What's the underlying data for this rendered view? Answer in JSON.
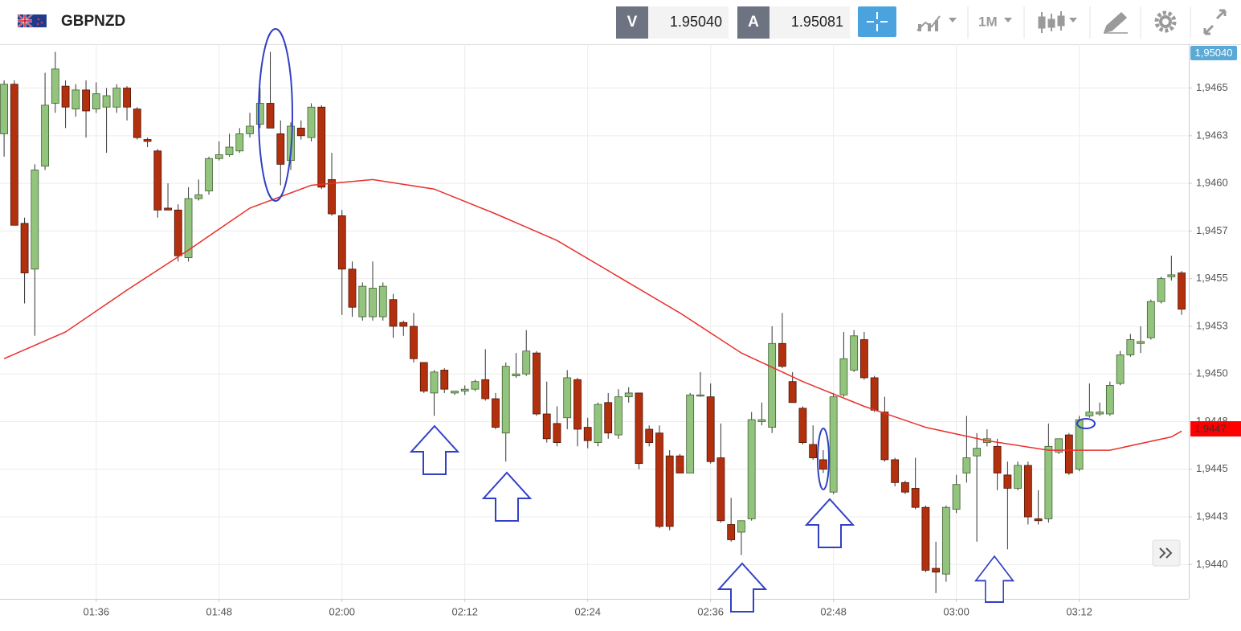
{
  "header": {
    "symbol": "GBPNZD",
    "sell_label": "V",
    "sell_price": "1.95040",
    "buy_label": "A",
    "buy_price": "1.95081",
    "timeframe": "1M"
  },
  "price_tags": {
    "ask": "1,95040",
    "last": "1,9447"
  },
  "chart_data": {
    "type": "candlestick",
    "x": [
      87,
      88,
      89,
      90,
      91,
      92,
      93,
      94,
      95,
      96,
      97,
      98,
      99,
      100,
      101,
      102,
      103,
      104,
      105,
      106,
      107,
      108,
      109,
      110,
      111,
      112,
      113,
      114,
      115,
      116,
      117,
      118,
      119,
      120,
      121,
      122,
      123,
      124,
      125,
      126,
      127,
      128,
      129,
      130,
      131,
      132,
      133,
      134,
      135,
      136,
      137,
      138,
      139,
      140,
      141,
      142,
      143,
      144,
      145,
      146,
      147,
      148,
      149,
      150,
      151,
      152,
      153,
      154,
      155,
      156,
      157,
      158,
      159,
      160,
      161,
      162,
      163,
      164,
      165,
      166,
      167,
      168,
      169,
      170,
      171,
      172,
      173,
      174,
      175,
      176,
      177,
      178,
      179,
      180,
      181,
      182,
      183,
      184,
      185,
      186,
      187,
      188,
      189,
      190,
      191,
      192,
      193,
      194,
      195,
      196,
      197,
      198,
      199,
      200,
      201,
      202
    ],
    "open": [
      1.94626,
      1.94652,
      1.94579,
      1.94555,
      1.94609,
      1.94642,
      1.94651,
      1.94639,
      1.94649,
      1.94639,
      1.9464,
      1.9464,
      1.9465,
      1.94639,
      1.94623,
      1.94617,
      1.94587,
      1.94586,
      1.94561,
      1.94592,
      1.94596,
      1.94613,
      1.94615,
      1.94617,
      1.94626,
      1.94631,
      1.94642,
      1.94626,
      1.94612,
      1.94629,
      1.94624,
      1.9464,
      1.94602,
      1.94583,
      1.94555,
      1.9453,
      1.9453,
      1.9453,
      1.94539,
      1.94527,
      1.94525,
      1.94506,
      1.9449,
      1.94502,
      1.9449,
      1.94491,
      1.94492,
      1.94497,
      1.94487,
      1.94469,
      1.94499,
      1.945,
      1.94511,
      1.94479,
      1.94474,
      1.94477,
      1.94497,
      1.94472,
      1.94464,
      1.94485,
      1.94468,
      1.94488,
      1.9449,
      1.94471,
      1.94469,
      1.94457,
      1.94457,
      1.94448,
      1.94489,
      1.94488,
      1.94456,
      1.94421,
      1.94417,
      1.94424,
      1.94475,
      1.94472,
      1.94516,
      1.94496,
      1.94482,
      1.94463,
      1.94455,
      1.94438,
      1.94489,
      1.94502,
      1.94518,
      1.94498,
      1.9448,
      1.94455,
      1.94443,
      1.9444,
      1.9443,
      1.94398,
      1.94395,
      1.94429,
      1.94448,
      1.94457,
      1.94464,
      1.94462,
      1.94447,
      1.9444,
      1.94452,
      1.94424,
      1.94424,
      1.94459,
      1.94468,
      1.9445,
      1.94478,
      1.94479,
      1.94479,
      1.94495,
      1.9451,
      1.94516,
      1.94519,
      1.94538,
      1.94551,
      1.94553
    ],
    "high": [
      1.94654,
      1.94654,
      1.94582,
      1.9461,
      1.94658,
      1.94669,
      1.94654,
      1.94652,
      1.94654,
      1.94653,
      1.9465,
      1.94652,
      1.94651,
      1.9464,
      1.94624,
      1.94618,
      1.946,
      1.94589,
      1.94598,
      1.94602,
      1.94614,
      1.94622,
      1.94626,
      1.94629,
      1.94637,
      1.9465,
      1.94669,
      1.94633,
      1.94632,
      1.94633,
      1.94642,
      1.94641,
      1.94616,
      1.94586,
      1.94559,
      1.94548,
      1.94559,
      1.94548,
      1.94542,
      1.94528,
      1.94532,
      1.94506,
      1.94502,
      1.94503,
      1.94491,
      1.94494,
      1.94497,
      1.94513,
      1.9449,
      1.94506,
      1.94511,
      1.94523,
      1.94512,
      1.94496,
      1.94483,
      1.94502,
      1.94498,
      1.94477,
      1.94485,
      1.9449,
      1.94492,
      1.94493,
      1.9449,
      1.94473,
      1.94473,
      1.9446,
      1.94458,
      1.9449,
      1.94501,
      1.94495,
      1.94474,
      1.94435,
      1.94423,
      1.9448,
      1.94485,
      1.94525,
      1.94532,
      1.94501,
      1.94483,
      1.94473,
      1.9446,
      1.9449,
      1.94522,
      1.94523,
      1.94522,
      1.94499,
      1.94488,
      1.94456,
      1.94444,
      1.94456,
      1.94431,
      1.94412,
      1.94431,
      1.94447,
      1.94478,
      1.94469,
      1.94471,
      1.94466,
      1.94454,
      1.94454,
      1.94454,
      1.94439,
      1.94474,
      1.94466,
      1.94469,
      1.94478,
      1.94495,
      1.94485,
      1.94496,
      1.94512,
      1.94521,
      1.94525,
      1.94539,
      1.94551,
      1.94562,
      1.94554
    ],
    "low": [
      1.94614,
      1.94578,
      1.94537,
      1.9452,
      1.94607,
      1.94637,
      1.94629,
      1.94635,
      1.94624,
      1.94637,
      1.94616,
      1.94637,
      1.94633,
      1.94623,
      1.94619,
      1.94582,
      1.94586,
      1.94559,
      1.94559,
      1.94591,
      1.94594,
      1.94612,
      1.94614,
      1.94616,
      1.94624,
      1.94629,
      1.94629,
      1.94599,
      1.94607,
      1.94623,
      1.94622,
      1.94597,
      1.94583,
      1.94531,
      1.9453,
      1.94528,
      1.94528,
      1.94528,
      1.94519,
      1.9452,
      1.94506,
      1.9449,
      1.94478,
      1.9449,
      1.94489,
      1.94489,
      1.94491,
      1.94486,
      1.94471,
      1.94454,
      1.94498,
      1.94499,
      1.94478,
      1.94464,
      1.94462,
      1.94471,
      1.94462,
      1.94461,
      1.94462,
      1.94466,
      1.94466,
      1.94485,
      1.9445,
      1.94462,
      1.94419,
      1.94418,
      1.94448,
      1.94448,
      1.94488,
      1.94453,
      1.94422,
      1.94412,
      1.94405,
      1.94423,
      1.94473,
      1.94469,
      1.94503,
      1.94485,
      1.94463,
      1.94455,
      1.94448,
      1.94437,
      1.94488,
      1.94501,
      1.94497,
      1.9448,
      1.94454,
      1.94441,
      1.94437,
      1.94429,
      1.94396,
      1.94385,
      1.94391,
      1.94427,
      1.94443,
      1.94412,
      1.94462,
      1.94439,
      1.94408,
      1.94439,
      1.94421,
      1.94421,
      1.94422,
      1.94458,
      1.94447,
      1.94449,
      1.94477,
      1.94478,
      1.94478,
      1.94494,
      1.94509,
      1.94511,
      1.94518,
      1.94537,
      1.94549,
      1.94531
    ],
    "close": [
      1.94652,
      1.94578,
      1.94553,
      1.94607,
      1.94641,
      1.9466,
      1.9464,
      1.94649,
      1.94638,
      1.94647,
      1.94646,
      1.9465,
      1.9464,
      1.94624,
      1.94622,
      1.94586,
      1.94586,
      1.94562,
      1.94592,
      1.94594,
      1.94613,
      1.94615,
      1.94619,
      1.94626,
      1.9463,
      1.94642,
      1.94629,
      1.9461,
      1.9463,
      1.94625,
      1.9464,
      1.94598,
      1.94584,
      1.94555,
      1.94535,
      1.94546,
      1.94545,
      1.94546,
      1.94525,
      1.94525,
      1.94508,
      1.94491,
      1.94501,
      1.94492,
      1.94491,
      1.94492,
      1.94496,
      1.94487,
      1.94472,
      1.94504,
      1.945,
      1.94512,
      1.94479,
      1.94466,
      1.94464,
      1.94498,
      1.94471,
      1.94465,
      1.94484,
      1.94469,
      1.94488,
      1.9449,
      1.94453,
      1.94464,
      1.9442,
      1.9442,
      1.94448,
      1.94489,
      1.94489,
      1.94454,
      1.94423,
      1.94413,
      1.94423,
      1.94476,
      1.94476,
      1.94516,
      1.94504,
      1.94485,
      1.94464,
      1.94456,
      1.9445,
      1.94488,
      1.94508,
      1.9452,
      1.94498,
      1.94481,
      1.94455,
      1.94443,
      1.94438,
      1.9443,
      1.94397,
      1.94396,
      1.9443,
      1.94442,
      1.94456,
      1.94461,
      1.94466,
      1.94448,
      1.9444,
      1.94452,
      1.94425,
      1.94423,
      1.94462,
      1.94466,
      1.94448,
      1.94476,
      1.9448,
      1.9448,
      1.94494,
      1.9451,
      1.94518,
      1.94517,
      1.94538,
      1.9455,
      1.94552,
      1.94534
    ],
    "up_color": "#93c47d",
    "down_color": "#b3300e",
    "moving_average": {
      "color": "#e8302c",
      "x": [
        87,
        93,
        99,
        105,
        111,
        117,
        123,
        129,
        135,
        141,
        147,
        153,
        159,
        165,
        171,
        177,
        183,
        189,
        195,
        201,
        202
      ],
      "values": [
        1.94508,
        1.94522,
        1.94544,
        1.94565,
        1.94587,
        1.94599,
        1.94602,
        1.94597,
        1.94584,
        1.9457,
        1.94551,
        1.94532,
        1.94511,
        1.94496,
        1.94483,
        1.94472,
        1.94465,
        1.9446,
        1.9446,
        1.94467,
        1.9447
      ]
    },
    "xlim": [
      86.6,
      202.7
    ],
    "xticks": [
      {
        "value": 96,
        "label": "01:36"
      },
      {
        "value": 108,
        "label": "01:48"
      },
      {
        "value": 120,
        "label": "02:00"
      },
      {
        "value": 132,
        "label": "02:12"
      },
      {
        "value": 144,
        "label": "02:24"
      },
      {
        "value": 156,
        "label": "02:36"
      },
      {
        "value": 168,
        "label": "02:48"
      },
      {
        "value": 180,
        "label": "03:00"
      },
      {
        "value": 192,
        "label": "03:12"
      }
    ],
    "ylim": [
      1.94382,
      1.94673
    ],
    "yticks": [
      {
        "value": 1.9465,
        "label": "1,9465"
      },
      {
        "value": 1.94625,
        "label": "1,9463"
      },
      {
        "value": 1.946,
        "label": "1,9460"
      },
      {
        "value": 1.94575,
        "label": "1,9457"
      },
      {
        "value": 1.9455,
        "label": "1,9455"
      },
      {
        "value": 1.94525,
        "label": "1,9453"
      },
      {
        "value": 1.945,
        "label": "1,9450"
      },
      {
        "value": 1.94475,
        "label": "1,9448"
      },
      {
        "value": 1.9445,
        "label": "1,9445"
      },
      {
        "value": 1.94425,
        "label": "1,9443"
      },
      {
        "value": 1.944,
        "label": "1,9440"
      }
    ],
    "grid": true
  }
}
